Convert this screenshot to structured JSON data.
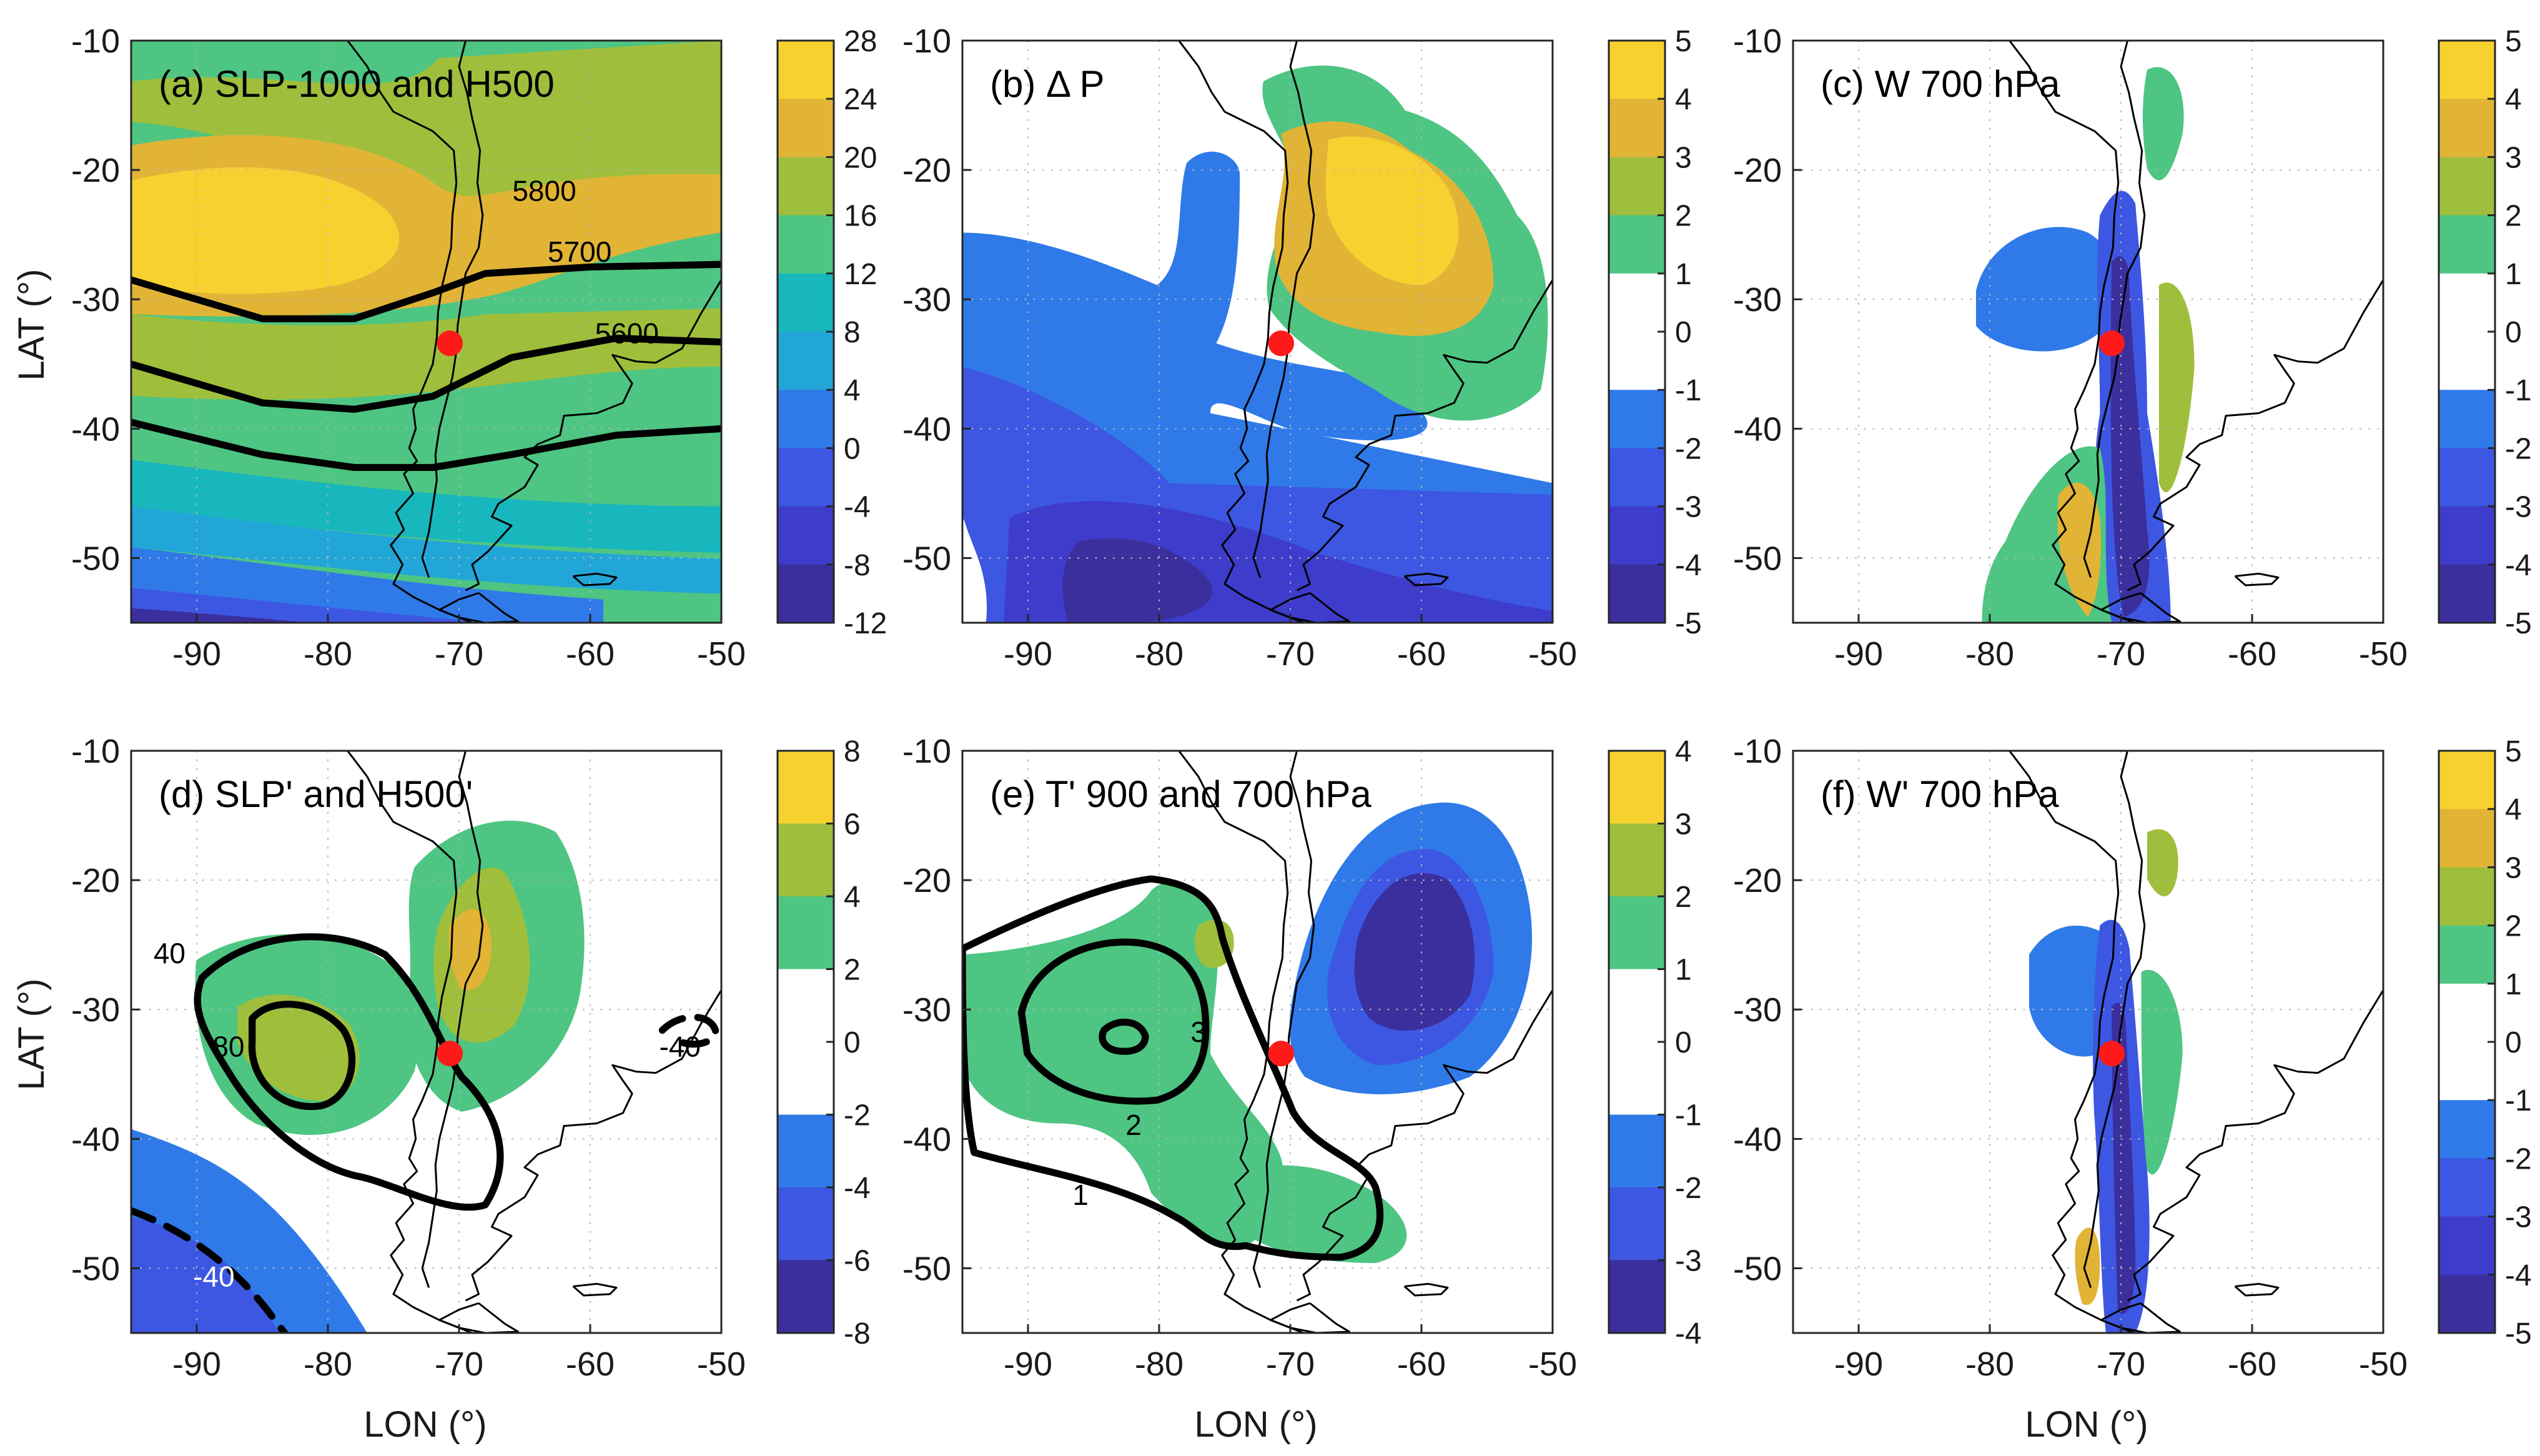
{
  "figure": {
    "x_axis_label": "LON (°)",
    "y_axis_label": "LAT (°)",
    "x_ticks": [
      "-90",
      "-80",
      "-70",
      "-60",
      "-50"
    ],
    "y_ticks": [
      "-10",
      "-20",
      "-30",
      "-40",
      "-50"
    ],
    "colors": {
      "neg5": "#3b2f9e",
      "neg4": "#3e3ccb",
      "neg3": "#3d57e2",
      "neg2": "#2f7ae8",
      "neg1": "#ffffff",
      "c0": "#22a6d8",
      "c1": "#18b7bd",
      "c2": "#4ec582",
      "c3": "#9fbf3c",
      "c4": "#e1b436",
      "c5": "#f7d130",
      "contour": "#000000",
      "marker": "#ff1a1a",
      "coast": "#000000"
    }
  },
  "chart_data": [
    {
      "id": "a",
      "type": "heatmap",
      "title": "(a) SLP-1000 and H500",
      "xlabel": "",
      "ylabel": "LAT (°)",
      "xlim": [
        -95,
        -50
      ],
      "ylim": [
        -55,
        -10
      ],
      "colorbar_ticks": [
        "28",
        "24",
        "20",
        "16",
        "12",
        "8",
        "4",
        "0",
        "-4",
        "-8",
        "-12"
      ],
      "contours": [
        {
          "label": "5800",
          "lat_at_lon": [
            [
              -95,
              -28.5
            ],
            [
              -85,
              -31.5
            ],
            [
              -78,
              -31.5
            ],
            [
              -72,
              -29.5
            ],
            [
              -68,
              -28
            ],
            [
              -60,
              -27.5
            ],
            [
              -50,
              -27.3
            ]
          ]
        },
        {
          "label": "5700",
          "lat_at_lon": [
            [
              -95,
              -35
            ],
            [
              -85,
              -38
            ],
            [
              -78,
              -38.5
            ],
            [
              -72,
              -37.5
            ],
            [
              -66,
              -34.5
            ],
            [
              -58,
              -33
            ],
            [
              -50,
              -33.3
            ]
          ]
        },
        {
          "label": "5600",
          "lat_at_lon": [
            [
              -95,
              -39.5
            ],
            [
              -85,
              -42
            ],
            [
              -78,
              -43
            ],
            [
              -72,
              -43
            ],
            [
              -66,
              -42
            ],
            [
              -58,
              -40.5
            ],
            [
              -50,
              -40
            ]
          ]
        }
      ],
      "marker": {
        "lon": -70.7,
        "lat": -33.4
      }
    },
    {
      "id": "b",
      "type": "heatmap",
      "title": "(b) Δ P",
      "xlim": [
        -95,
        -50
      ],
      "ylim": [
        -55,
        -10
      ],
      "colorbar_ticks": [
        "5",
        "4",
        "3",
        "2",
        "1",
        "0",
        "-1",
        "-2",
        "-3",
        "-4",
        "-5"
      ],
      "contours": [],
      "marker": {
        "lon": -70.7,
        "lat": -33.4
      }
    },
    {
      "id": "c",
      "type": "heatmap",
      "title": "(c) W 700 hPa",
      "xlim": [
        -95,
        -50
      ],
      "ylim": [
        -55,
        -10
      ],
      "colorbar_ticks": [
        "5",
        "4",
        "3",
        "2",
        "1",
        "0",
        "-1",
        "-2",
        "-3",
        "-4",
        "-5"
      ],
      "contours": [],
      "marker": {
        "lon": -70.7,
        "lat": -33.4
      }
    },
    {
      "id": "d",
      "type": "heatmap",
      "title": "(d) SLP' and H500'",
      "xlabel": "LON (°)",
      "ylabel": "LAT (°)",
      "xlim": [
        -95,
        -50
      ],
      "ylim": [
        -55,
        -10
      ],
      "colorbar_ticks": [
        "8",
        "6",
        "4",
        "2",
        "0",
        "-2",
        "-4",
        "-6",
        "-8"
      ],
      "contours": [
        {
          "label": "40",
          "dashed": false
        },
        {
          "label": "80",
          "dashed": false
        },
        {
          "label": "-40",
          "dashed": true
        },
        {
          "label": "-40",
          "dashed": true
        }
      ],
      "marker": {
        "lon": -70.7,
        "lat": -33.4
      }
    },
    {
      "id": "e",
      "type": "heatmap",
      "title": "(e) T' 900 and 700 hPa",
      "xlabel": "LON (°)",
      "xlim": [
        -95,
        -50
      ],
      "ylim": [
        -55,
        -10
      ],
      "colorbar_ticks": [
        "4",
        "3",
        "2",
        "1",
        "0",
        "-1",
        "-2",
        "-3",
        "-4"
      ],
      "contours": [
        {
          "label": "1",
          "dashed": false
        },
        {
          "label": "2",
          "dashed": false
        },
        {
          "label": "3",
          "dashed": false
        }
      ],
      "marker": {
        "lon": -70.7,
        "lat": -33.4
      }
    },
    {
      "id": "f",
      "type": "heatmap",
      "title": "(f) W' 700 hPa",
      "xlabel": "LON (°)",
      "xlim": [
        -95,
        -50
      ],
      "ylim": [
        -55,
        -10
      ],
      "colorbar_ticks": [
        "5",
        "4",
        "3",
        "2",
        "1",
        "0",
        "-1",
        "-2",
        "-3",
        "-4",
        "-5"
      ],
      "contours": [],
      "marker": {
        "lon": -70.7,
        "lat": -33.4
      }
    }
  ]
}
